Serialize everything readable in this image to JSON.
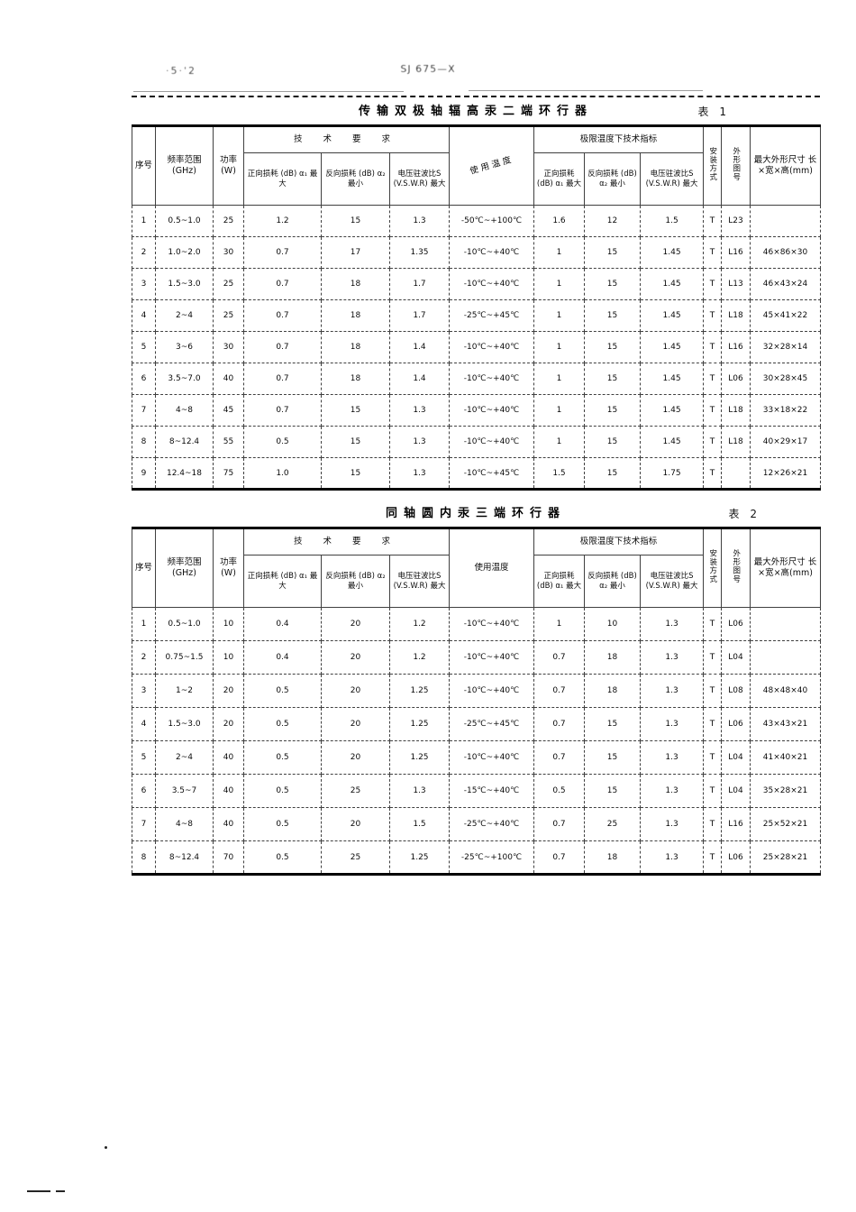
{
  "page": {
    "header_left": "·5·'2",
    "header_center": "SJ 675—X"
  },
  "tables": [
    {
      "title": "传输双极轴辐高汞二端环行器",
      "table_label": "表 1",
      "columns": {
        "seq": "序号",
        "freq": "频率范围 (GHz)",
        "power": "功率 (W)",
        "group_tech": "技 术 要 求",
        "fwd_loss": "正向损耗 (dB) α₁ 最大",
        "rev_loss": "反向损耗 (dB) α₂ 最小",
        "vswr": "电压驻波比S (V.S.W.R) 最大",
        "temp": "使用温度",
        "group_temp": "极限温度下技术指标",
        "fwd_loss_t": "正向损耗 (dB) α₁ 最大",
        "rev_loss_t": "反向损耗 (dB) α₂ 最小",
        "vswr_t": "电压驻波比S (V.S.W.R) 最大",
        "mount": "安装方式",
        "outline": "外形图号",
        "dims": "最大外形尺寸 长×宽×高(mm)"
      },
      "rows": [
        [
          "1",
          "0.5~1.0",
          "25",
          "1.2",
          "15",
          "1.3",
          "-50℃~+100℃",
          "1.6",
          "12",
          "1.5",
          "T",
          "L23",
          ""
        ],
        [
          "2",
          "1.0~2.0",
          "30",
          "0.7",
          "17",
          "1.35",
          "-10℃~+40℃",
          "1",
          "15",
          "1.45",
          "T",
          "L16",
          "46×86×30"
        ],
        [
          "3",
          "1.5~3.0",
          "25",
          "0.7",
          "18",
          "1.7",
          "-10℃~+40℃",
          "1",
          "15",
          "1.45",
          "T",
          "L13",
          "46×43×24"
        ],
        [
          "4",
          "2~4",
          "25",
          "0.7",
          "18",
          "1.7",
          "-25℃~+45℃",
          "1",
          "15",
          "1.45",
          "T",
          "L18",
          "45×41×22"
        ],
        [
          "5",
          "3~6",
          "30",
          "0.7",
          "18",
          "1.4",
          "-10℃~+40℃",
          "1",
          "15",
          "1.45",
          "T",
          "L16",
          "32×28×14"
        ],
        [
          "6",
          "3.5~7.0",
          "40",
          "0.7",
          "18",
          "1.4",
          "-10℃~+40℃",
          "1",
          "15",
          "1.45",
          "T",
          "L06",
          "30×28×45"
        ],
        [
          "7",
          "4~8",
          "45",
          "0.7",
          "15",
          "1.3",
          "-10℃~+40℃",
          "1",
          "15",
          "1.45",
          "T",
          "L18",
          "33×18×22"
        ],
        [
          "8",
          "8~12.4",
          "55",
          "0.5",
          "15",
          "1.3",
          "-10℃~+40℃",
          "1",
          "15",
          "1.45",
          "T",
          "L18",
          "40×29×17"
        ],
        [
          "9",
          "12.4~18",
          "75",
          "1.0",
          "15",
          "1.3",
          "-10℃~+45℃",
          "1.5",
          "15",
          "1.75",
          "T",
          "",
          "12×26×21"
        ]
      ]
    },
    {
      "title": "同轴圆内汞三端环行器",
      "table_label": "表 2",
      "columns": {
        "seq": "序号",
        "freq": "频率范围 (GHz)",
        "power": "功率 (W)",
        "group_tech": "技 术 要 求",
        "fwd_loss": "正向损耗 (dB) α₁ 最大",
        "rev_loss": "反向损耗 (dB) α₂ 最小",
        "vswr": "电压驻波比S (V.S.W.R) 最大",
        "temp": "使用温度",
        "group_temp": "极限温度下技术指标",
        "fwd_loss_t": "正向损耗 (dB) α₁ 最大",
        "rev_loss_t": "反向损耗 (dB) α₂ 最小",
        "vswr_t": "电压驻波比S (V.S.W.R) 最大",
        "mount": "安装方式",
        "outline": "外形图号",
        "dims": "最大外形尺寸 长×宽×高(mm)"
      },
      "rows": [
        [
          "1",
          "0.5~1.0",
          "10",
          "0.4",
          "20",
          "1.2",
          "-10℃~+40℃",
          "1",
          "10",
          "1.3",
          "T",
          "L06",
          ""
        ],
        [
          "2",
          "0.75~1.5",
          "10",
          "0.4",
          "20",
          "1.2",
          "-10℃~+40℃",
          "0.7",
          "18",
          "1.3",
          "T",
          "L04",
          ""
        ],
        [
          "3",
          "1~2",
          "20",
          "0.5",
          "20",
          "1.25",
          "-10℃~+40℃",
          "0.7",
          "18",
          "1.3",
          "T",
          "L08",
          "48×48×40"
        ],
        [
          "4",
          "1.5~3.0",
          "20",
          "0.5",
          "20",
          "1.25",
          "-25℃~+45℃",
          "0.7",
          "15",
          "1.3",
          "T",
          "L06",
          "43×43×21"
        ],
        [
          "5",
          "2~4",
          "40",
          "0.5",
          "20",
          "1.25",
          "-10℃~+40℃",
          "0.7",
          "15",
          "1.3",
          "T",
          "L04",
          "41×40×21"
        ],
        [
          "6",
          "3.5~7",
          "40",
          "0.5",
          "25",
          "1.3",
          "-15℃~+40℃",
          "0.5",
          "15",
          "1.3",
          "T",
          "L04",
          "35×28×21"
        ],
        [
          "7",
          "4~8",
          "40",
          "0.5",
          "20",
          "1.5",
          "-25℃~+40℃",
          "0.7",
          "25",
          "1.3",
          "T",
          "L16",
          "25×52×21"
        ],
        [
          "8",
          "8~12.4",
          "70",
          "0.5",
          "25",
          "1.25",
          "-25℃~+100℃",
          "0.7",
          "18",
          "1.3",
          "T",
          "L06",
          "25×28×21"
        ]
      ]
    }
  ]
}
